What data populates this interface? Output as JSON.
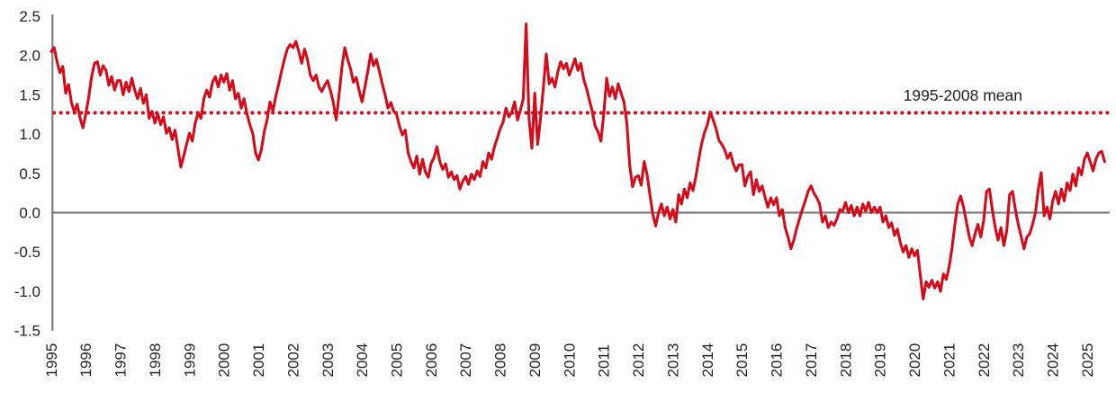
{
  "chart_data": {
    "type": "line",
    "title": "",
    "grid": false,
    "legend_position": "none",
    "x_axis": {
      "start_year": 1995,
      "end_year": 2025,
      "tick_labels": [
        "1995",
        "1996",
        "1997",
        "1998",
        "1999",
        "2000",
        "2001",
        "2002",
        "2003",
        "2004",
        "2005",
        "2006",
        "2007",
        "2008",
        "2009",
        "2010",
        "2011",
        "2012",
        "2013",
        "2014",
        "2015",
        "2016",
        "2017",
        "2018",
        "2019",
        "2020",
        "2021",
        "2022",
        "2023",
        "2024",
        "2025"
      ],
      "label_rotation_deg": -90
    },
    "y_axis": {
      "min": -1.5,
      "max": 2.5,
      "tick_values": [
        2.5,
        2.0,
        1.5,
        1.0,
        0.5,
        0.0,
        -0.5,
        -1.0,
        -1.5
      ],
      "tick_labels": [
        "2.5",
        "2.0",
        "1.5",
        "1.0",
        "0.5",
        "0.0",
        "-0.5",
        "-1.0",
        "-1.5"
      ]
    },
    "zero_line": {
      "value": 0.0
    },
    "mean_line": {
      "label": "1995-2008 mean",
      "value": 1.27,
      "style": "dotted"
    },
    "series": {
      "start_x": 1995.0,
      "x_step": 0.0833333,
      "values": [
        2.05,
        2.1,
        1.92,
        1.78,
        1.86,
        1.52,
        1.63,
        1.4,
        1.28,
        1.38,
        1.2,
        1.08,
        1.26,
        1.47,
        1.73,
        1.9,
        1.92,
        1.75,
        1.87,
        1.81,
        1.62,
        1.73,
        1.56,
        1.68,
        1.68,
        1.5,
        1.66,
        1.54,
        1.71,
        1.56,
        1.45,
        1.58,
        1.39,
        1.5,
        1.2,
        1.29,
        1.14,
        1.26,
        1.12,
        1.22,
        1.01,
        1.08,
        0.93,
        1.05,
        0.82,
        0.58,
        0.72,
        0.87,
        1.01,
        0.91,
        1.14,
        1.27,
        1.2,
        1.45,
        1.56,
        1.47,
        1.66,
        1.73,
        1.6,
        1.75,
        1.66,
        1.77,
        1.56,
        1.68,
        1.45,
        1.52,
        1.33,
        1.45,
        1.26,
        1.12,
        1.01,
        0.76,
        0.67,
        0.8,
        1.03,
        1.18,
        1.41,
        1.29,
        1.48,
        1.63,
        1.8,
        1.95,
        2.08,
        2.14,
        2.1,
        2.18,
        2.05,
        1.9,
        2.08,
        1.95,
        1.75,
        1.68,
        1.75,
        1.6,
        1.54,
        1.62,
        1.68,
        1.55,
        1.4,
        1.18,
        1.5,
        1.85,
        2.1,
        1.95,
        1.83,
        1.66,
        1.72,
        1.55,
        1.41,
        1.6,
        1.8,
        2.02,
        1.87,
        1.95,
        1.8,
        1.64,
        1.5,
        1.33,
        1.4,
        1.29,
        1.25,
        1.1,
        0.99,
        1.05,
        0.76,
        0.65,
        0.57,
        0.72,
        0.49,
        0.68,
        0.52,
        0.45,
        0.63,
        0.7,
        0.84,
        0.65,
        0.55,
        0.62,
        0.45,
        0.52,
        0.42,
        0.47,
        0.3,
        0.4,
        0.46,
        0.36,
        0.49,
        0.42,
        0.53,
        0.46,
        0.65,
        0.57,
        0.76,
        0.68,
        0.84,
        0.95,
        1.07,
        1.15,
        1.33,
        1.22,
        1.28,
        1.41,
        1.18,
        1.3,
        1.45,
        2.4,
        1.2,
        0.82,
        1.52,
        0.87,
        1.2,
        1.6,
        2.02,
        1.64,
        1.71,
        1.6,
        1.79,
        1.92,
        1.83,
        1.9,
        1.75,
        1.85,
        1.96,
        1.81,
        1.9,
        1.7,
        1.58,
        1.43,
        1.29,
        1.1,
        1.03,
        0.91,
        1.26,
        1.71,
        1.48,
        1.6,
        1.45,
        1.64,
        1.52,
        1.41,
        1.14,
        0.6,
        0.33,
        0.45,
        0.47,
        0.35,
        0.65,
        0.49,
        0.23,
        -0.02,
        -0.17,
        0.0,
        0.11,
        -0.04,
        0.07,
        -0.08,
        0.04,
        -0.12,
        0.23,
        0.11,
        0.3,
        0.19,
        0.38,
        0.28,
        0.46,
        0.68,
        0.88,
        1.02,
        1.12,
        1.28,
        1.18,
        1.07,
        0.92,
        0.87,
        0.8,
        0.69,
        0.76,
        0.62,
        0.53,
        0.61,
        0.61,
        0.34,
        0.46,
        0.52,
        0.23,
        0.42,
        0.27,
        0.34,
        0.2,
        0.07,
        0.19,
        0.1,
        0.19,
        -0.04,
        0.04,
        -0.19,
        -0.31,
        -0.46,
        -0.35,
        -0.2,
        -0.08,
        0.04,
        0.15,
        0.27,
        0.34,
        0.25,
        0.19,
        0.11,
        -0.12,
        -0.04,
        -0.19,
        -0.12,
        -0.16,
        -0.08,
        0.04,
        0.02,
        0.13,
        0.0,
        0.09,
        -0.04,
        0.07,
        -0.04,
        0.11,
        0.02,
        0.13,
        0.0,
        0.07,
        0.0,
        0.07,
        -0.12,
        -0.04,
        -0.19,
        -0.13,
        -0.29,
        -0.21,
        -0.38,
        -0.5,
        -0.42,
        -0.57,
        -0.46,
        -0.55,
        -0.48,
        -0.8,
        -1.1,
        -0.88,
        -0.95,
        -0.86,
        -0.96,
        -0.88,
        -1.0,
        -0.78,
        -0.85,
        -0.69,
        -0.45,
        -0.15,
        0.11,
        0.21,
        0.07,
        -0.12,
        -0.31,
        -0.42,
        -0.27,
        -0.15,
        -0.31,
        -0.1,
        0.27,
        0.3,
        0.04,
        -0.19,
        -0.35,
        -0.19,
        -0.42,
        -0.23,
        0.23,
        0.27,
        0.04,
        -0.15,
        -0.3,
        -0.46,
        -0.31,
        -0.27,
        -0.15,
        0.0,
        0.3,
        0.51,
        -0.04,
        0.07,
        -0.08,
        0.15,
        0.27,
        0.11,
        0.3,
        0.15,
        0.38,
        0.28,
        0.49,
        0.34,
        0.57,
        0.48,
        0.68,
        0.76,
        0.65,
        0.53,
        0.68,
        0.76,
        0.78,
        0.65
      ]
    }
  },
  "colors": {
    "series": "#d40d1e",
    "mean_line": "#d40d1e",
    "axis": "#808080",
    "text": "#231f20",
    "background": "#ffffff"
  }
}
